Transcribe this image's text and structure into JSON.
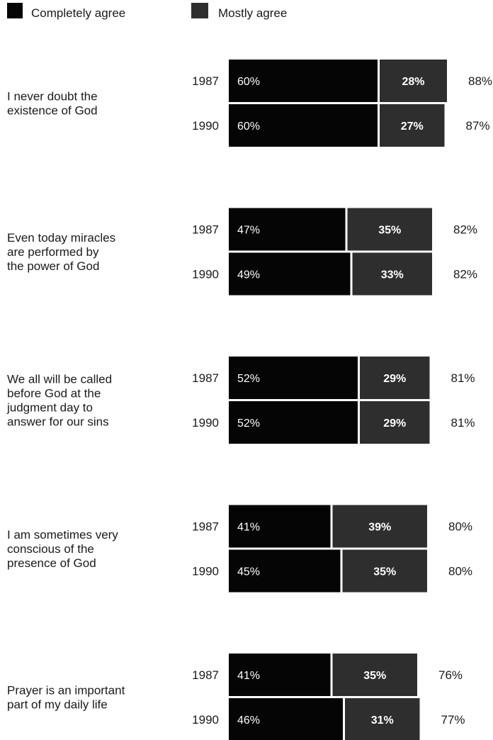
{
  "chart_data": {
    "type": "bar",
    "orientation": "horizontal",
    "stacked": true,
    "legend_position": "top-left",
    "legend": [
      {
        "name": "Completely agree",
        "color": "#050505"
      },
      {
        "name": "Mostly agree",
        "color": "#2e2e2e"
      }
    ],
    "groups": [
      {
        "statement": [
          "I never doubt the",
          "existence of God"
        ],
        "rows": [
          {
            "year": "1987",
            "values": [
              60,
              28
            ],
            "labels": [
              "60%",
              "28%"
            ],
            "total": "88%"
          },
          {
            "year": "1990",
            "values": [
              60,
              27
            ],
            "labels": [
              "60%",
              "27%"
            ],
            "total": "87%"
          }
        ]
      },
      {
        "statement": [
          "Even today miracles",
          "are performed by",
          "the power of God"
        ],
        "rows": [
          {
            "year": "1987",
            "values": [
              47,
              35
            ],
            "labels": [
              "47%",
              "35%"
            ],
            "total": "82%"
          },
          {
            "year": "1990",
            "values": [
              49,
              33
            ],
            "labels": [
              "49%",
              "33%"
            ],
            "total": "82%"
          }
        ]
      },
      {
        "statement": [
          "We all will be called",
          "before God at the",
          "judgment day to",
          "answer for our sins"
        ],
        "rows": [
          {
            "year": "1987",
            "values": [
              52,
              29
            ],
            "labels": [
              "52%",
              "29%"
            ],
            "total": "81%"
          },
          {
            "year": "1990",
            "values": [
              52,
              29
            ],
            "labels": [
              "52%",
              "29%"
            ],
            "total": "81%"
          }
        ]
      },
      {
        "statement": [
          "I am sometimes very",
          "conscious of the",
          "presence of God"
        ],
        "rows": [
          {
            "year": "1987",
            "values": [
              41,
              39
            ],
            "labels": [
              "41%",
              "39%"
            ],
            "total": "80%"
          },
          {
            "year": "1990",
            "values": [
              45,
              35
            ],
            "labels": [
              "45%",
              "35%"
            ],
            "total": "80%"
          }
        ]
      },
      {
        "statement": [
          "Prayer is an important",
          "part of my daily life"
        ],
        "rows": [
          {
            "year": "1987",
            "values": [
              41,
              35
            ],
            "labels": [
              "41%",
              "35%"
            ],
            "total": "76%"
          },
          {
            "year": "1990",
            "values": [
              46,
              31
            ],
            "labels": [
              "46%",
              "31%"
            ],
            "total": "77%"
          }
        ]
      }
    ]
  }
}
